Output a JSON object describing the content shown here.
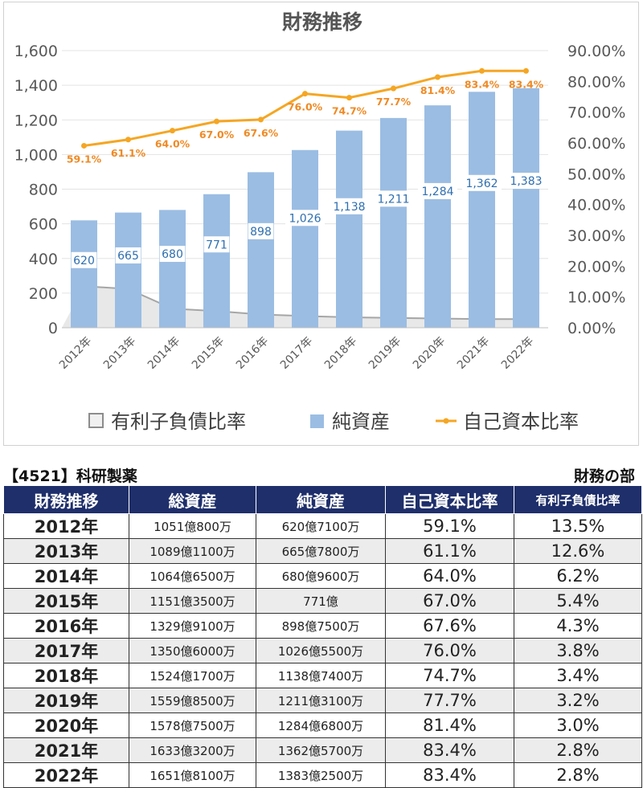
{
  "chart_data": {
    "type": "bar",
    "title": "財務推移",
    "categories": [
      "2012年",
      "2013年",
      "2014年",
      "2015年",
      "2016年",
      "2017年",
      "2018年",
      "2019年",
      "2020年",
      "2021年",
      "2022年"
    ],
    "series": [
      {
        "name": "純資産",
        "type": "bar",
        "axis": "left",
        "values": [
          620,
          665,
          680,
          771,
          898,
          1026,
          1138,
          1211,
          1284,
          1362,
          1383
        ],
        "labels": [
          "620",
          "665",
          "680",
          "771",
          "898",
          "1,026",
          "1,138",
          "1,211",
          "1,284",
          "1,362",
          "1,383"
        ]
      },
      {
        "name": "有利子負債比率",
        "type": "area",
        "axis": "right",
        "values": [
          13.5,
          12.6,
          6.2,
          5.4,
          4.3,
          3.8,
          3.4,
          3.2,
          3.0,
          2.8,
          2.8
        ]
      },
      {
        "name": "自己資本比率",
        "type": "line",
        "axis": "right",
        "values": [
          59.1,
          61.1,
          64.0,
          67.0,
          67.6,
          76.0,
          74.7,
          77.7,
          81.4,
          83.4,
          83.4
        ],
        "labels": [
          "59.1%",
          "61.1%",
          "64.0%",
          "67.0%",
          "67.6%",
          "76.0%",
          "74.7%",
          "77.7%",
          "81.4%",
          "83.4%",
          "83.4%"
        ]
      }
    ],
    "y_left": {
      "min": 0,
      "max": 1600,
      "ticks": [
        "0",
        "200",
        "400",
        "600",
        "800",
        "1,000",
        "1,200",
        "1,400",
        "1,600"
      ]
    },
    "y_right": {
      "min": 0,
      "max": 90,
      "ticks": [
        "0.00%",
        "10.00%",
        "20.00%",
        "30.00%",
        "40.00%",
        "50.00%",
        "60.00%",
        "70.00%",
        "80.00%",
        "90.00%"
      ]
    },
    "legend": {
      "placement": "bottom",
      "items": [
        "有利子負債比率",
        "純資産",
        "自己資本比率"
      ]
    },
    "colors": {
      "bar": "#9bbde3",
      "line": "#f5a623",
      "area_fill": "#e8e8e8",
      "area_line": "#a6a6a6",
      "bar_label": "#2e6fb0",
      "line_label": "#f08a24"
    }
  },
  "table": {
    "company": "【4521】科研製薬",
    "section": "財務の部",
    "headers": [
      "財務推移",
      "総資産",
      "純資産",
      "自己資本比率",
      "有利子負債比率"
    ],
    "rows": [
      {
        "year": "2012年",
        "total": "1051億800万",
        "net": "620億7100万",
        "equity": "59.1%",
        "debt": "13.5%"
      },
      {
        "year": "2013年",
        "total": "1089億1100万",
        "net": "665億7800万",
        "equity": "61.1%",
        "debt": "12.6%"
      },
      {
        "year": "2014年",
        "total": "1064億6500万",
        "net": "680億9600万",
        "equity": "64.0%",
        "debt": "6.2%"
      },
      {
        "year": "2015年",
        "total": "1151億3500万",
        "net": "771億",
        "equity": "67.0%",
        "debt": "5.4%"
      },
      {
        "year": "2016年",
        "total": "1329億9100万",
        "net": "898億7500万",
        "equity": "67.6%",
        "debt": "4.3%"
      },
      {
        "year": "2017年",
        "total": "1350億6000万",
        "net": "1026億5500万",
        "equity": "76.0%",
        "debt": "3.8%"
      },
      {
        "year": "2018年",
        "total": "1524億1700万",
        "net": "1138億7400万",
        "equity": "74.7%",
        "debt": "3.4%"
      },
      {
        "year": "2019年",
        "total": "1559億8500万",
        "net": "1211億3100万",
        "equity": "77.7%",
        "debt": "3.2%"
      },
      {
        "year": "2020年",
        "total": "1578億7500万",
        "net": "1284億6800万",
        "equity": "81.4%",
        "debt": "3.0%"
      },
      {
        "year": "2021年",
        "total": "1633億3200万",
        "net": "1362億5700万",
        "equity": "83.4%",
        "debt": "2.8%"
      },
      {
        "year": "2022年",
        "total": "1651億8100万",
        "net": "1383億2500万",
        "equity": "83.4%",
        "debt": "2.8%"
      }
    ]
  }
}
